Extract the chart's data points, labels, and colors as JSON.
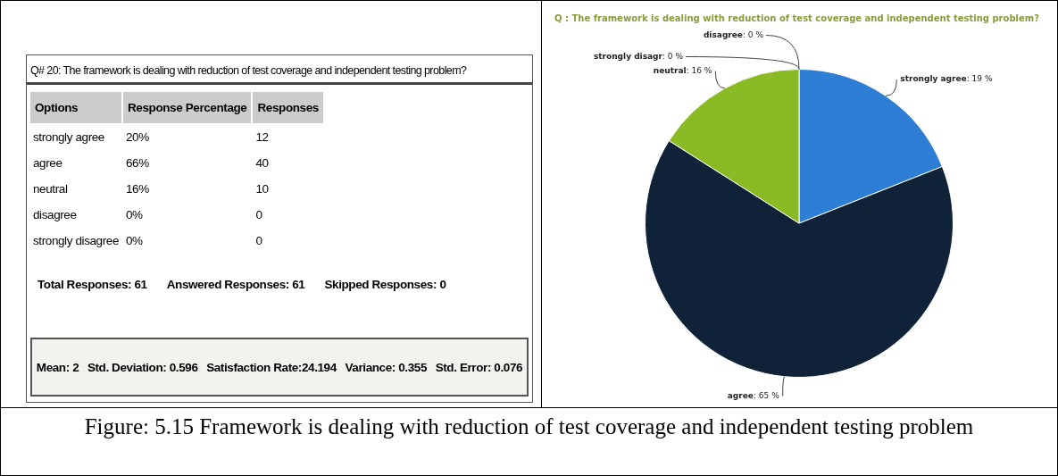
{
  "chart_data": [
    {
      "type": "other",
      "title": "Q# 20: The framework is dealing with reduction of test coverage and independent testing problem?",
      "annotations": [
        "Options",
        "Response Percentage",
        "Responses",
        "strongly agree",
        "20%",
        "12",
        "agree",
        "66%",
        "40",
        "neutral",
        "16%",
        "10",
        "disagree",
        "0%",
        "0",
        "strongly disagree",
        "0%",
        "0",
        "Total Responses: 61",
        "Answered Responses: 61",
        "Skipped Responses: 0",
        "Mean: 2",
        "Std. Deviation: 0.596",
        "Satisfaction Rate:24.194",
        "Variance: 0.355",
        "Std. Error: 0.076"
      ]
    },
    {
      "type": "pie",
      "title": "Q : The framework is dealing with reduction of test coverage and independent testing problem?",
      "categories": [
        "strongly agree",
        "agree",
        "neutral",
        "strongly disagr",
        "disagree"
      ],
      "values": [
        19,
        65,
        16,
        0,
        0
      ],
      "value_labels": [
        ": 19 %",
        ": 65 %",
        ": 16 %",
        ": 0 %",
        ": 0 %"
      ],
      "colors": [
        "#2e7ed6",
        "#0f2238",
        "#8aba24",
        "#e0a030",
        "#c04040"
      ],
      "annotations": [
        "Figure: 5.15 Framework is dealing with reduction of test coverage and independent testing problem"
      ]
    }
  ]
}
